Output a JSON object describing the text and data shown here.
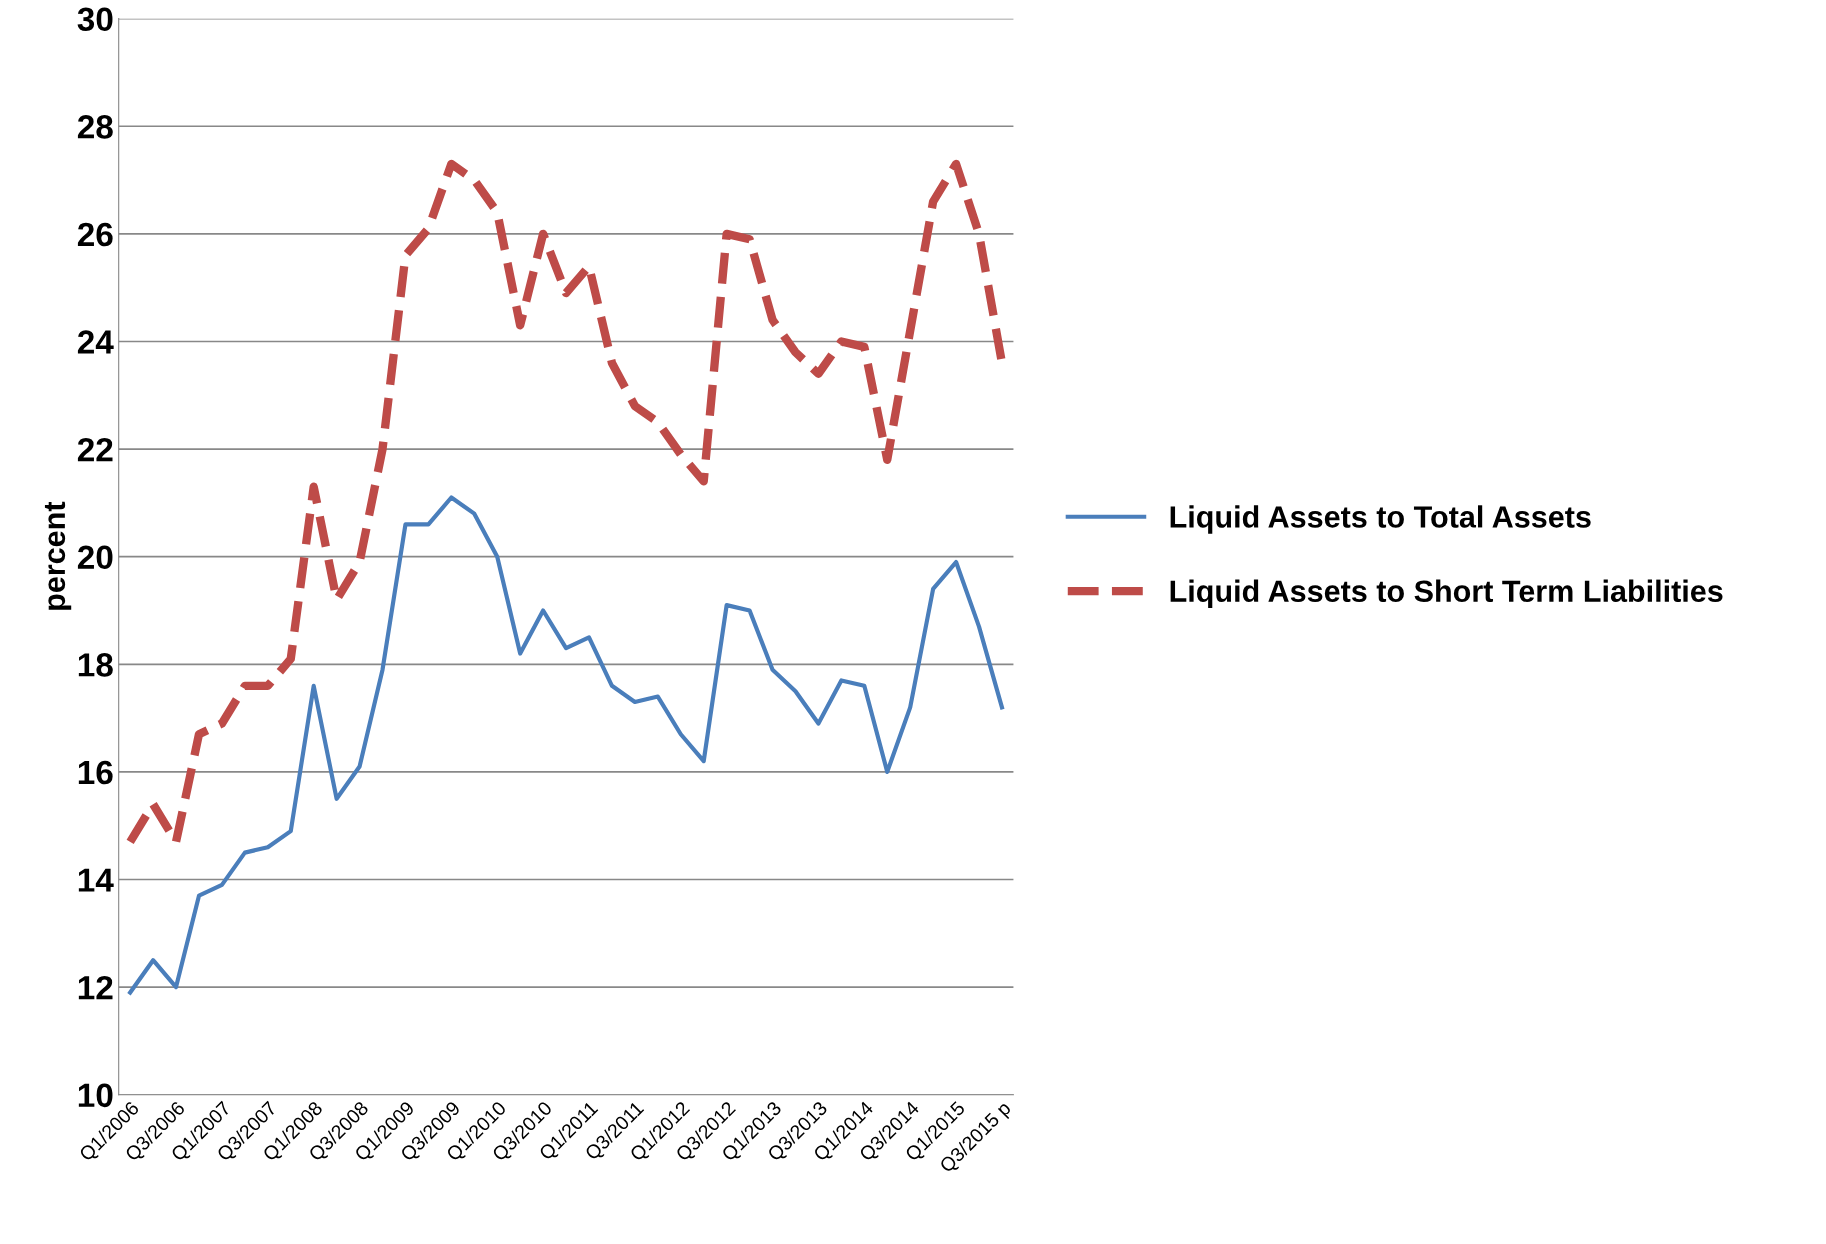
{
  "chart_data": {
    "type": "line",
    "ylabel": "percent",
    "categories": [
      "Q1/2006",
      null,
      "Q3/2006",
      null,
      "Q1/2007",
      null,
      "Q3/2007",
      null,
      "Q1/2008",
      null,
      "Q3/2008",
      null,
      "Q1/2009",
      null,
      "Q3/2009",
      null,
      "Q1/2010",
      null,
      "Q3/2010",
      null,
      "Q1/2011",
      null,
      "Q3/2011",
      null,
      "Q1/2012",
      null,
      "Q3/2012",
      null,
      "Q1/2013",
      null,
      "Q3/2013",
      null,
      "Q1/2014",
      null,
      "Q3/2014",
      null,
      "Q1/2015",
      null,
      "Q3/2015 p"
    ],
    "series": [
      {
        "name": "Liquid Assets to Total Assets",
        "color": "#4a7ebb",
        "line_style": "solid",
        "values": [
          11.9,
          12.5,
          12.0,
          13.7,
          13.9,
          14.5,
          14.6,
          14.9,
          17.6,
          15.5,
          16.1,
          17.9,
          20.6,
          20.6,
          21.1,
          20.8,
          20.0,
          18.2,
          19.0,
          18.3,
          18.5,
          17.6,
          17.3,
          17.4,
          16.7,
          16.2,
          19.1,
          19.0,
          17.9,
          17.5,
          16.9,
          17.7,
          17.6,
          16.0,
          17.2,
          19.4,
          19.9,
          18.7,
          17.2
        ]
      },
      {
        "name": "Liquid Assets to Short Term Liabilities",
        "color": "#be4b48",
        "line_style": "dashed",
        "values": [
          14.7,
          15.4,
          14.7,
          16.7,
          16.9,
          17.6,
          17.6,
          18.1,
          21.3,
          19.2,
          19.9,
          22.0,
          25.6,
          26.1,
          27.3,
          27.0,
          26.4,
          24.3,
          26.0,
          24.9,
          25.4,
          23.6,
          22.8,
          22.5,
          21.9,
          21.4,
          26.0,
          25.9,
          24.4,
          23.8,
          23.4,
          24.0,
          23.9,
          21.8,
          24.2,
          26.6,
          27.3,
          26.0,
          23.6
        ]
      }
    ],
    "ylim": [
      10,
      30
    ],
    "yticks": [
      10,
      12,
      14,
      16,
      18,
      20,
      22,
      24,
      26,
      28,
      30
    ],
    "grid": "y",
    "legend": "right"
  }
}
